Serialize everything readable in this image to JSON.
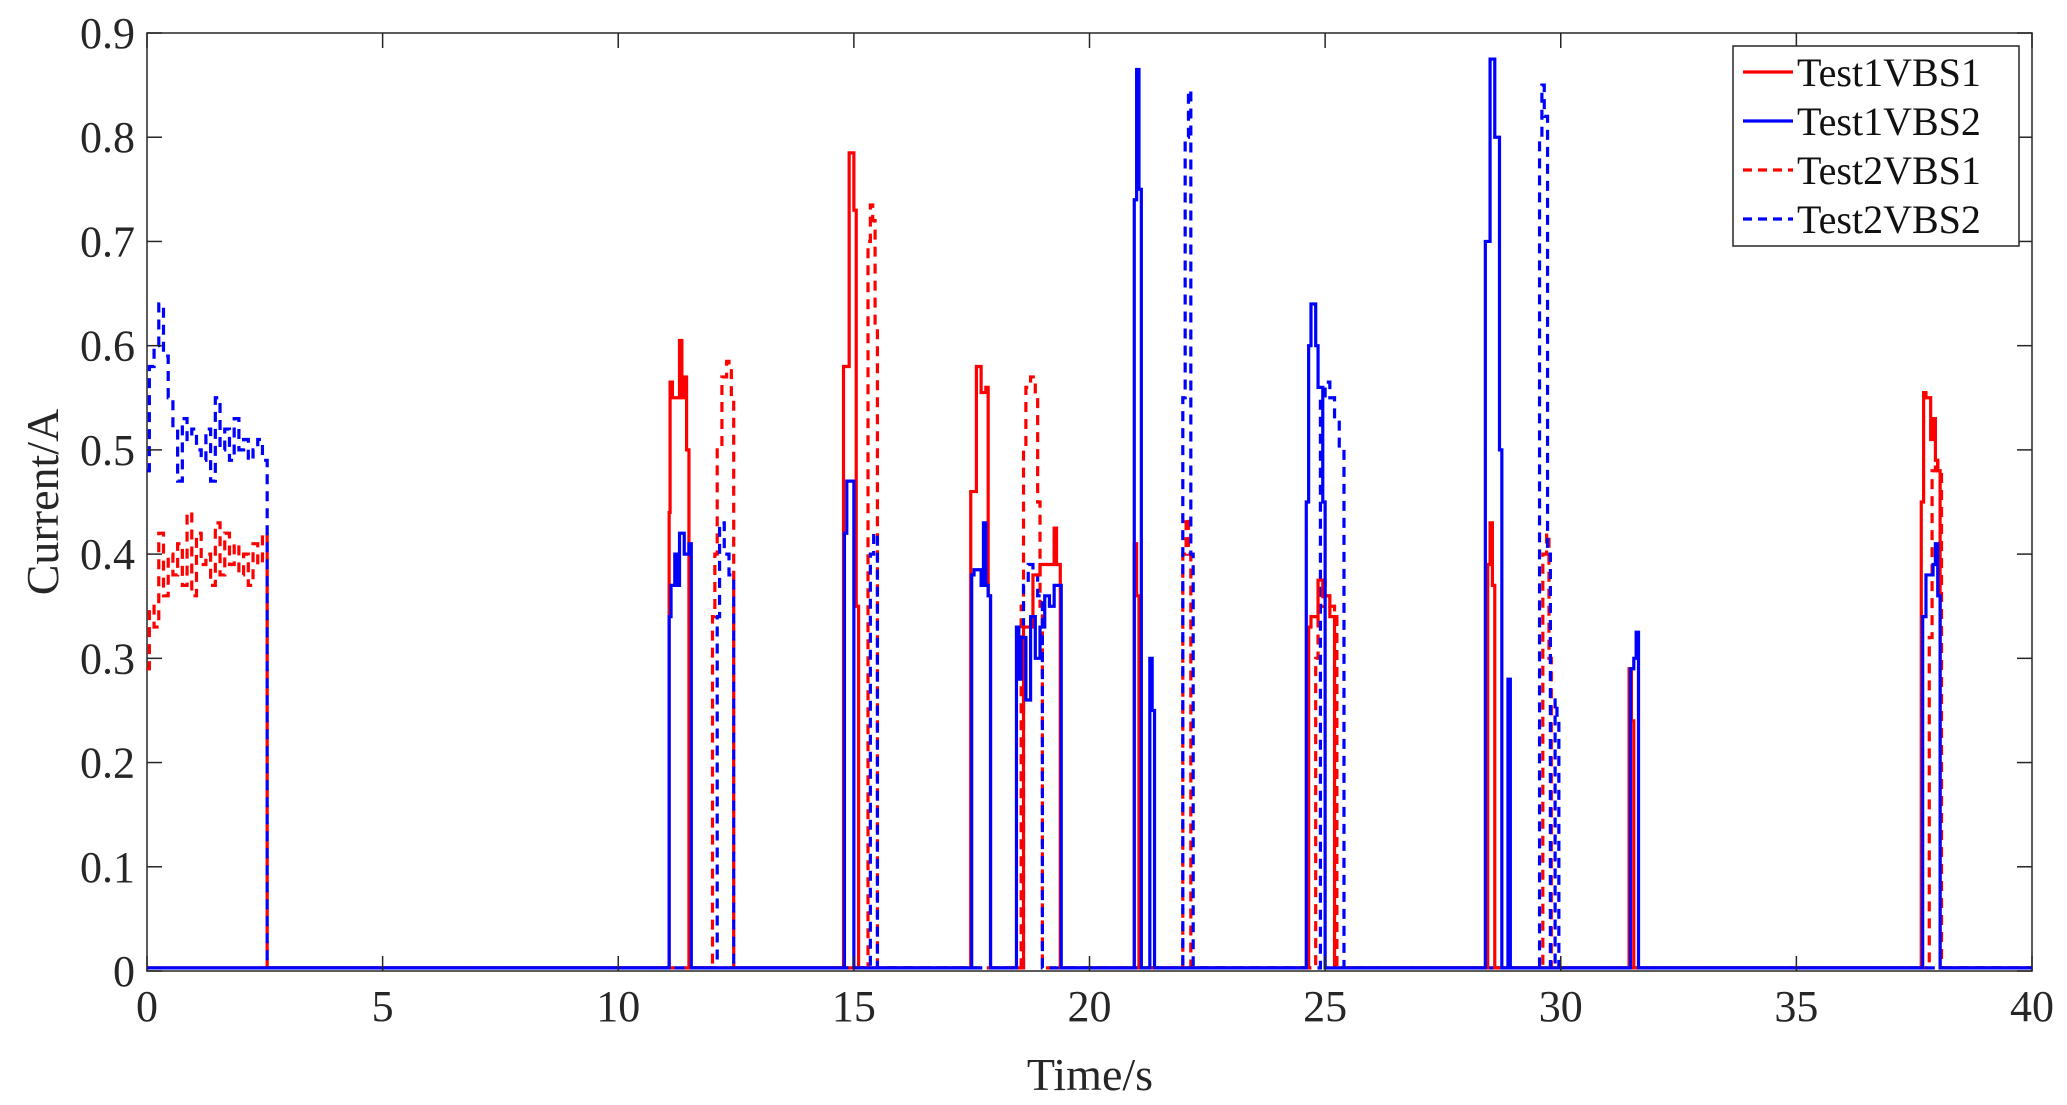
{
  "chart_data": {
    "type": "line",
    "xlabel": "Time/s",
    "ylabel": "Current/A",
    "xlim": [
      0,
      40
    ],
    "ylim": [
      0,
      0.9
    ],
    "xticks": [
      "0",
      "5",
      "10",
      "15",
      "20",
      "25",
      "30",
      "35",
      "40"
    ],
    "yticks": [
      "0",
      "0.1",
      "0.2",
      "0.3",
      "0.4",
      "0.5",
      "0.6",
      "0.7",
      "0.8",
      "0.9"
    ],
    "grid": false,
    "legend_position": "top-right",
    "series": [
      {
        "name": "Test1VBS1",
        "color": "#ff0000",
        "dash": "solid",
        "x": [
          0,
          11.08,
          11.1,
          11.15,
          11.3,
          11.35,
          11.4,
          11.45,
          11.5,
          11.55,
          14.78,
          14.82,
          14.9,
          15.0,
          15.05,
          15.1,
          17.48,
          17.5,
          17.6,
          17.7,
          17.8,
          17.85,
          17.9,
          18.55,
          18.6,
          18.8,
          18.95,
          19.1,
          19.25,
          19.3,
          19.38,
          20.95,
          21.0,
          21.05,
          24.65,
          24.7,
          24.85,
          24.95,
          25.1,
          25.2,
          28.45,
          28.5,
          28.55,
          28.6,
          28.65,
          31.45,
          31.5,
          31.55,
          37.65,
          37.7,
          37.75,
          37.85,
          37.9,
          37.95,
          38.0,
          38.05,
          38.1
        ],
        "y": [
          0.003,
          0.44,
          0.565,
          0.55,
          0.605,
          0.55,
          0.57,
          0.5,
          0.003,
          0.003,
          0.58,
          0.58,
          0.785,
          0.73,
          0.35,
          0.003,
          0.46,
          0.46,
          0.58,
          0.555,
          0.56,
          0.36,
          0.003,
          0.003,
          0.33,
          0.38,
          0.39,
          0.39,
          0.425,
          0.39,
          0.003,
          0.41,
          0.36,
          0.003,
          0.33,
          0.34,
          0.375,
          0.36,
          0.34,
          0.003,
          0.39,
          0.43,
          0.37,
          0.003,
          0.003,
          0.29,
          0.24,
          0.003,
          0.45,
          0.555,
          0.55,
          0.51,
          0.53,
          0.49,
          0.48,
          0.003,
          0.003
        ]
      },
      {
        "name": "Test1VBS2",
        "color": "#0000ff",
        "dash": "solid",
        "x": [
          0,
          11.08,
          11.12,
          11.2,
          11.25,
          11.3,
          11.4,
          11.5,
          11.55,
          14.8,
          14.85,
          14.95,
          15.0,
          17.5,
          17.55,
          17.7,
          17.75,
          17.8,
          17.85,
          17.9,
          18.45,
          18.5,
          18.55,
          18.65,
          18.75,
          18.85,
          18.95,
          19.05,
          19.15,
          19.25,
          19.4,
          20.95,
          21.0,
          21.05,
          21.1,
          21.28,
          21.33,
          21.38,
          24.6,
          24.65,
          24.7,
          24.8,
          24.85,
          24.95,
          25.0,
          28.4,
          28.5,
          28.6,
          28.7,
          28.75,
          28.88,
          28.93,
          31.48,
          31.55,
          31.6,
          31.65,
          37.68,
          37.75,
          37.9,
          37.95,
          38.0,
          38.05
        ],
        "y": [
          0.003,
          0.34,
          0.37,
          0.4,
          0.37,
          0.42,
          0.4,
          0.41,
          0.003,
          0.42,
          0.47,
          0.47,
          0.003,
          0.38,
          0.385,
          0.37,
          0.43,
          0.37,
          0.36,
          0.003,
          0.33,
          0.28,
          0.32,
          0.26,
          0.34,
          0.3,
          0.33,
          0.36,
          0.35,
          0.37,
          0.003,
          0.74,
          0.865,
          0.75,
          0.003,
          0.3,
          0.25,
          0.003,
          0.45,
          0.6,
          0.64,
          0.6,
          0.56,
          0.45,
          0.003,
          0.7,
          0.875,
          0.8,
          0.5,
          0.003,
          0.28,
          0.003,
          0.29,
          0.3,
          0.325,
          0.003,
          0.34,
          0.38,
          0.39,
          0.41,
          0.36,
          0.003
        ]
      },
      {
        "name": "Test2VBS1",
        "color": "#ff0000",
        "dash": "dashed",
        "x": [
          0,
          0.05,
          0.15,
          0.25,
          0.35,
          0.45,
          0.55,
          0.65,
          0.75,
          0.85,
          0.95,
          1.05,
          1.15,
          1.25,
          1.35,
          1.45,
          1.55,
          1.65,
          1.75,
          1.85,
          1.95,
          2.05,
          2.15,
          2.25,
          2.35,
          2.45,
          2.55,
          12.0,
          12.05,
          12.1,
          12.2,
          12.3,
          12.35,
          12.4,
          12.45,
          15.3,
          15.35,
          15.4,
          15.45,
          15.5,
          18.55,
          18.6,
          18.65,
          18.75,
          18.85,
          18.9,
          18.95,
          19.0,
          21.98,
          22.05,
          22.1,
          22.15,
          24.8,
          24.85,
          24.95,
          25.0,
          25.1,
          25.2,
          25.25,
          29.62,
          29.7,
          29.75,
          29.8,
          37.82,
          37.88,
          37.95,
          38.0,
          38.08
        ],
        "y": [
          0.29,
          0.35,
          0.33,
          0.42,
          0.36,
          0.4,
          0.38,
          0.41,
          0.37,
          0.44,
          0.36,
          0.42,
          0.39,
          0.4,
          0.37,
          0.43,
          0.38,
          0.42,
          0.39,
          0.41,
          0.38,
          0.4,
          0.37,
          0.41,
          0.39,
          0.42,
          0.003,
          0.34,
          0.4,
          0.5,
          0.57,
          0.585,
          0.58,
          0.55,
          0.003,
          0.7,
          0.735,
          0.72,
          0.62,
          0.003,
          0.35,
          0.5,
          0.56,
          0.57,
          0.55,
          0.45,
          0.35,
          0.003,
          0.4,
          0.435,
          0.4,
          0.003,
          0.3,
          0.35,
          0.375,
          0.36,
          0.35,
          0.34,
          0.003,
          0.4,
          0.42,
          0.3,
          0.003,
          0.32,
          0.48,
          0.49,
          0.48,
          0.003
        ]
      },
      {
        "name": "Test2VBS2",
        "color": "#0000ff",
        "dash": "dashed",
        "x": [
          0,
          0.05,
          0.15,
          0.25,
          0.35,
          0.45,
          0.55,
          0.65,
          0.75,
          0.85,
          0.95,
          1.05,
          1.15,
          1.25,
          1.35,
          1.45,
          1.55,
          1.65,
          1.75,
          1.85,
          1.95,
          2.05,
          2.15,
          2.25,
          2.35,
          2.45,
          2.55,
          12.1,
          12.15,
          12.25,
          12.35,
          12.45,
          15.35,
          15.42,
          15.5,
          18.6,
          18.7,
          18.8,
          18.9,
          19.0,
          21.98,
          22.03,
          22.1,
          22.15,
          22.2,
          24.9,
          25.0,
          25.1,
          25.2,
          25.3,
          25.4,
          29.55,
          29.6,
          29.65,
          29.72,
          29.78,
          29.88,
          29.92,
          29.96
        ],
        "y": [
          0.48,
          0.58,
          0.6,
          0.64,
          0.59,
          0.55,
          0.52,
          0.47,
          0.53,
          0.51,
          0.52,
          0.5,
          0.49,
          0.52,
          0.47,
          0.55,
          0.5,
          0.52,
          0.49,
          0.53,
          0.5,
          0.51,
          0.49,
          0.5,
          0.51,
          0.49,
          0.003,
          0.34,
          0.43,
          0.4,
          0.38,
          0.003,
          0.4,
          0.42,
          0.003,
          0.37,
          0.39,
          0.38,
          0.36,
          0.003,
          0.55,
          0.8,
          0.845,
          0.4,
          0.003,
          0.55,
          0.565,
          0.55,
          0.53,
          0.5,
          0.003,
          0.8,
          0.85,
          0.82,
          0.4,
          0.003,
          0.26,
          0.24,
          0.003
        ]
      }
    ]
  }
}
